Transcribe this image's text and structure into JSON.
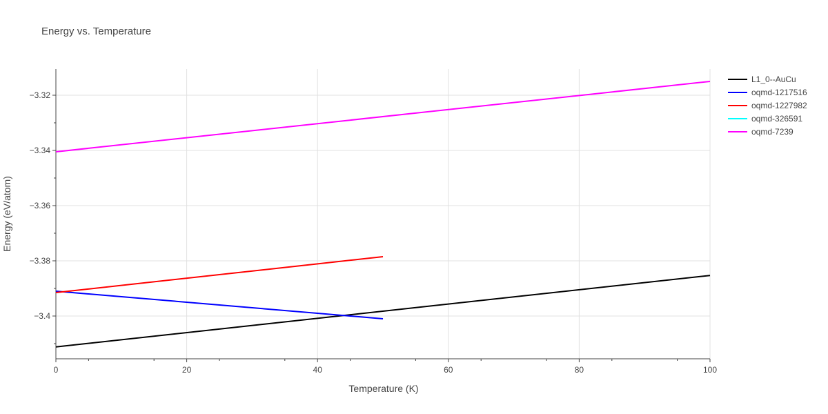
{
  "chart_data": {
    "type": "line",
    "title": "Energy vs. Temperature",
    "xlabel": "Temperature (K)",
    "ylabel": "Energy (eV/atom)",
    "xlim": [
      0,
      100
    ],
    "ylim": [
      -3.4155,
      -3.3105
    ],
    "xticks": [
      0,
      20,
      40,
      60,
      80,
      100
    ],
    "xtick_labels": [
      "0",
      "20",
      "40",
      "60",
      "80",
      "100"
    ],
    "yticks": [
      -3.32,
      -3.34,
      -3.36,
      -3.38,
      -3.4
    ],
    "ytick_labels": [
      "−3.32",
      "−3.34",
      "−3.36",
      "−3.38",
      "−3.4"
    ],
    "grid": true,
    "legend_position": "top-right, outside plot",
    "series": [
      {
        "name": "L1_0--AuCu",
        "color": "#000000",
        "x": [
          0,
          100
        ],
        "y": [
          -3.4112,
          -3.3853
        ]
      },
      {
        "name": "oqmd-1217516",
        "color": "#0000ff",
        "x": [
          0,
          50
        ],
        "y": [
          -3.391,
          -3.401
        ]
      },
      {
        "name": "oqmd-1227982",
        "color": "#ff0000",
        "x": [
          0,
          50
        ],
        "y": [
          -3.3915,
          -3.3785
        ]
      },
      {
        "name": "oqmd-326591",
        "color": "#00ffff",
        "x": [],
        "y": []
      },
      {
        "name": "oqmd-7239",
        "color": "#ff00ff",
        "x": [
          0,
          100
        ],
        "y": [
          -3.3405,
          -3.315
        ]
      }
    ]
  }
}
